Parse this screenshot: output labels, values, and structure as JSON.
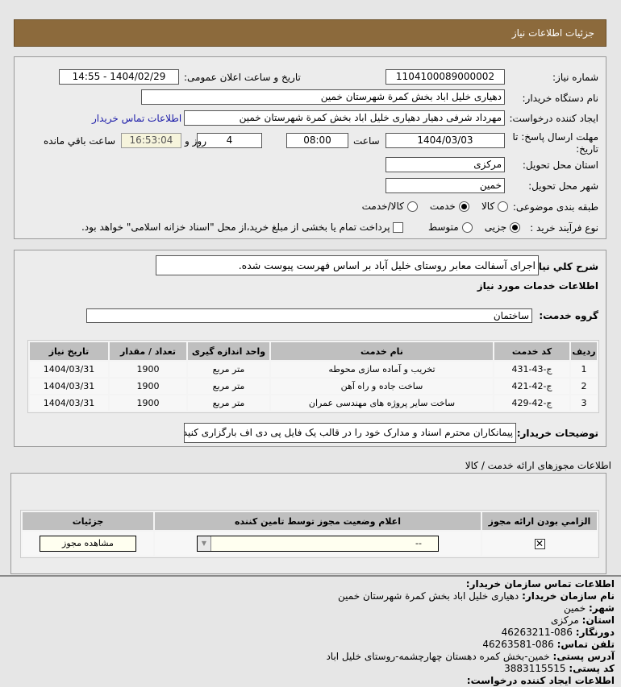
{
  "header": {
    "title": "جزئیات اطلاعات نیاز"
  },
  "form": {
    "need_number_label": "شماره نیاز:",
    "need_number": "1104100089000002",
    "announce_label": "تاریخ و ساعت اعلان عمومی:",
    "announce_value": "1404/02/29 - 14:55",
    "buyer_org_label": "نام دستگاه خریدار:",
    "buyer_org": "دهیاری خلیل اباد بخش کمرة شهرستان خمین",
    "creator_label": "ایجاد کننده درخواست:",
    "creator": "مهرداد شرفی دهیار دهیاری خلیل اباد بخش کمرة شهرستان خمین",
    "contact_link": "اطلاعات تماس خریدار",
    "deadline_label": "مهلت ارسال پاسخ: تا تاریخ:",
    "deadline_date": "1404/03/03",
    "time_label": "ساعت",
    "deadline_time": "08:00",
    "days": "4",
    "days_label": "روز و",
    "remaining": "16:53:04",
    "remaining_label": "ساعت باقي مانده",
    "province_label": "استان محل تحویل:",
    "province": "مرکزی",
    "city_label": "شهر محل تحویل:",
    "city": "خمین",
    "category_label": "طبقه بندی موضوعی:",
    "category_options": [
      "کالا",
      "خدمت",
      "کالا/خدمت"
    ],
    "category_selected": "خدمت",
    "process_label": "نوع فرآیند خرید :",
    "process_options": [
      "جزیی",
      "متوسط"
    ],
    "process_selected": "جزیی",
    "payment_note": "پرداخت تمام یا بخشی از مبلغ خرید،از محل \"اسناد خزانه اسلامی\" خواهد بود."
  },
  "services": {
    "desc_label": "شرح کلي نياز:",
    "desc": "اجرای آسفالت معابر روستای خلیل آباد بر اساس فهرست پیوست شده.",
    "section_title": "اطلاعات خدمات مورد نیاز",
    "group_label": "گروه خدمت:",
    "group": "ساختمان",
    "columns": [
      "ردیف",
      "کد خدمت",
      "نام خدمت",
      "واحد اندازه گیری",
      "تعداد / مقدار",
      "تاریخ نیاز"
    ],
    "rows": [
      [
        "1",
        "ج-43-431",
        "تخریب و آماده سازی محوطه",
        "متر مربع",
        "1900",
        "1404/03/31"
      ],
      [
        "2",
        "ج-42-421",
        "ساخت جاده و راه آهن",
        "متر مربع",
        "1900",
        "1404/03/31"
      ],
      [
        "3",
        "ج-42-429",
        "ساخت سایر پروژه های مهندسی عمران",
        "متر مربع",
        "1900",
        "1404/03/31"
      ]
    ],
    "notes_label": "توضیحات خریدار:",
    "notes": "پیمانکاران محترم اسناد و مدارک خود را در قالب یک فایل پی دی اف بارگزاری کنید."
  },
  "licenses": {
    "title": "اطلاعات مجوزهای ارائه خدمت / کالا",
    "columns": [
      "الزامي بودن ارائه مجوز",
      "اعلام وضعیت مجوز توسط تامین کننده",
      "جزئیات"
    ],
    "select_value": "--",
    "view_button": "مشاهده مجوز"
  },
  "contact": {
    "title": "اطلاعات تماس سازمان خریدار:",
    "org_label": "نام سازمان خریدار:",
    "org": "دهیاری خلیل اباد بخش کمرة شهرستان خمین",
    "city_label": "شهر:",
    "city": "خمین",
    "province_label": "استان:",
    "province": "مرکزی",
    "fax_label": "دورنگار:",
    "fax": "086-46263211",
    "phone_label": "تلفن تماس:",
    "phone": "086-46263581",
    "address_label": "آدرس پستی:",
    "address": "خمین-بخش کمره دهستان چهارچشمه-روستای خلیل اباد",
    "postal_label": "کد پستی:",
    "postal": "3883115515",
    "creator_title": "اطلاعات ایجاد کننده درخواست:"
  }
}
